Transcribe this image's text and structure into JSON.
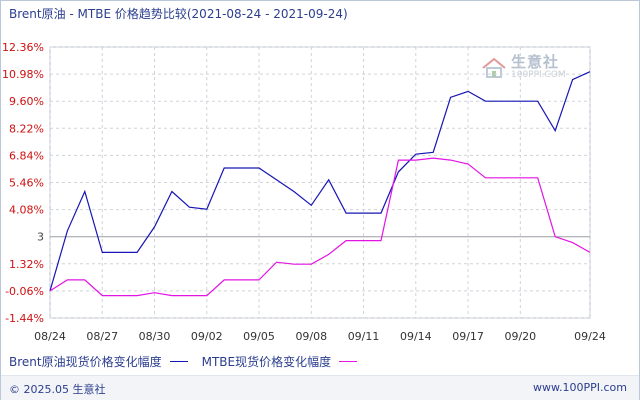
{
  "title": "Brent原油 - MTBE 价格趋势比较(2021-08-24 - 2021-09-24)",
  "legend": {
    "brent": "Brent原油现货价格变化幅度",
    "mtbe": "MTBE现货价格变化幅度"
  },
  "footer": {
    "copyright": "© 2025.05 生意社",
    "site": "www.100PPI.com"
  },
  "watermark": {
    "name": "生意社",
    "url": "100PPI.COM"
  },
  "colors": {
    "brent": "#1616b4",
    "mtbe": "#e314e3",
    "grid": "#cfd3d8",
    "axis_label_red": "#d01010",
    "axis_label_gray": "#444444"
  },
  "chart_data": {
    "type": "line",
    "title": "Brent原油 - MTBE 价格趋势比较(2021-08-24 - 2021-09-24)",
    "x": [
      "08/24",
      "08/25",
      "08/26",
      "08/27",
      "08/28",
      "08/29",
      "08/30",
      "08/31",
      "09/01",
      "09/02",
      "09/03",
      "09/04",
      "09/05",
      "09/06",
      "09/07",
      "09/08",
      "09/09",
      "09/10",
      "09/11",
      "09/12",
      "09/13",
      "09/14",
      "09/15",
      "09/16",
      "09/17",
      "09/18",
      "09/19",
      "09/20",
      "09/21",
      "09/22",
      "09/23",
      "09/24"
    ],
    "x_tick_labels": [
      "08/24",
      "08/27",
      "08/30",
      "09/02",
      "09/05",
      "09/08",
      "09/11",
      "09/14",
      "09/17",
      "09/20",
      "09/24"
    ],
    "y_tick_labels": [
      "12.36%",
      "10.98%",
      "9.60%",
      "8.22%",
      "6.84%",
      "5.46%",
      "4.08%",
      "3",
      "1.32%",
      "-0.06%",
      "-1.44%"
    ],
    "y_tick_values": [
      12.36,
      10.98,
      9.6,
      8.22,
      6.84,
      5.46,
      4.08,
      2.7,
      1.32,
      -0.06,
      -1.44
    ],
    "ylim": [
      -1.44,
      12.36
    ],
    "reference_line": 2.7,
    "grid": true,
    "series": [
      {
        "name": "Brent原油现货价格变化幅度",
        "values": [
          -0.06,
          3.0,
          5.0,
          1.9,
          1.9,
          1.9,
          3.2,
          5.0,
          4.2,
          4.1,
          6.2,
          6.2,
          6.2,
          5.6,
          5.0,
          4.3,
          5.6,
          3.9,
          3.9,
          3.9,
          6.0,
          6.9,
          7.0,
          9.8,
          10.1,
          9.6,
          9.6,
          9.6,
          9.6,
          8.1,
          10.7,
          11.1
        ]
      },
      {
        "name": "MTBE现货价格变化幅度",
        "values": [
          -0.06,
          0.5,
          0.5,
          -0.3,
          -0.3,
          -0.3,
          -0.15,
          -0.3,
          -0.3,
          -0.3,
          0.5,
          0.5,
          0.5,
          1.4,
          1.3,
          1.3,
          1.8,
          2.5,
          2.5,
          2.5,
          6.6,
          6.6,
          6.7,
          6.6,
          6.4,
          5.7,
          5.7,
          5.7,
          5.7,
          2.7,
          2.4,
          1.9
        ]
      }
    ]
  }
}
